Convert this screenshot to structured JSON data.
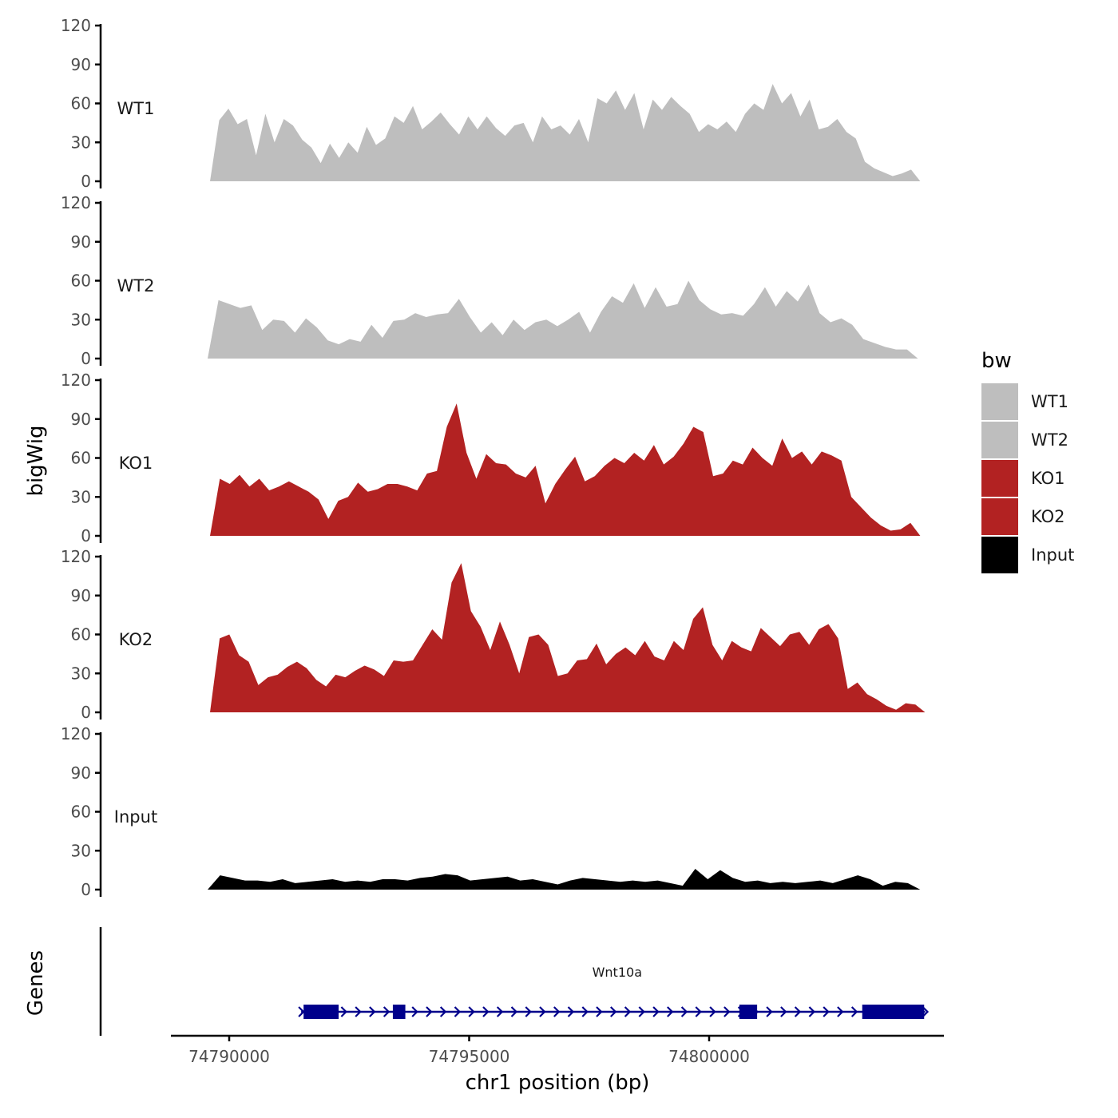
{
  "chart_data": {
    "type": "area",
    "y_axis_title": "bigWig",
    "x_axis_title": "chr1 position (bp)",
    "genes_axis_title": "Genes",
    "y_ticks": [
      "0",
      "30",
      "60",
      "90",
      "120"
    ],
    "ylim": [
      0,
      120
    ],
    "xlim": [
      74788800,
      74804700
    ],
    "x_ticks": [
      {
        "value": 74790000,
        "label": "74790000"
      },
      {
        "value": 74795000,
        "label": "74795000"
      },
      {
        "value": 74800000,
        "label": "74800000"
      }
    ],
    "legend": {
      "title": "bw",
      "entries": [
        {
          "label": "WT1",
          "color": "#bebebe"
        },
        {
          "label": "WT2",
          "color": "#bebebe"
        },
        {
          "label": "KO1",
          "color": "#b22222"
        },
        {
          "label": "KO2",
          "color": "#b22222"
        },
        {
          "label": "Input",
          "color": "#000000"
        }
      ]
    },
    "series": [
      {
        "name": "WT1",
        "color": "#bebebe",
        "x_start": 74789600,
        "x_end": 74804400,
        "values": [
          0,
          47,
          56,
          44,
          48,
          20,
          52,
          30,
          48,
          43,
          32,
          26,
          14,
          29,
          18,
          30,
          22,
          42,
          28,
          33,
          50,
          45,
          58,
          40,
          46,
          53,
          44,
          36,
          50,
          40,
          50,
          41,
          35,
          43,
          45,
          30,
          50,
          40,
          43,
          36,
          48,
          30,
          64,
          60,
          70,
          55,
          68,
          40,
          63,
          55,
          65,
          58,
          52,
          38,
          44,
          40,
          46,
          38,
          52,
          60,
          55,
          75,
          60,
          68,
          50,
          63,
          40,
          42,
          48,
          38,
          33,
          15,
          10,
          7,
          4,
          6,
          9,
          0
        ]
      },
      {
        "name": "WT2",
        "color": "#bebebe",
        "x_start": 74789550,
        "x_end": 74804350,
        "values": [
          0,
          45,
          42,
          39,
          41,
          22,
          30,
          29,
          20,
          31,
          24,
          14,
          11,
          15,
          13,
          26,
          16,
          29,
          30,
          35,
          32,
          34,
          35,
          46,
          32,
          20,
          28,
          18,
          30,
          22,
          28,
          30,
          25,
          30,
          36,
          20,
          36,
          48,
          43,
          58,
          39,
          55,
          40,
          42,
          60,
          45,
          38,
          34,
          35,
          33,
          42,
          55,
          40,
          52,
          44,
          57,
          35,
          28,
          31,
          26,
          15,
          12,
          9,
          7,
          7,
          0
        ]
      },
      {
        "name": "KO1",
        "color": "#b22222",
        "x_start": 74789600,
        "x_end": 74804400,
        "values": [
          0,
          44,
          40,
          47,
          38,
          44,
          35,
          38,
          42,
          38,
          34,
          28,
          13,
          27,
          30,
          41,
          34,
          36,
          40,
          40,
          38,
          35,
          48,
          50,
          84,
          102,
          64,
          44,
          63,
          56,
          55,
          48,
          45,
          54,
          25,
          40,
          51,
          61,
          42,
          46,
          54,
          60,
          56,
          64,
          58,
          70,
          55,
          61,
          71,
          84,
          80,
          46,
          48,
          58,
          55,
          68,
          60,
          54,
          75,
          60,
          65,
          55,
          65,
          62,
          58,
          30,
          22,
          14,
          8,
          4,
          5,
          10,
          0
        ]
      },
      {
        "name": "KO2",
        "color": "#b22222",
        "x_start": 74789600,
        "x_end": 74804500,
        "values": [
          0,
          57,
          60,
          44,
          39,
          21,
          27,
          29,
          35,
          39,
          34,
          25,
          20,
          29,
          27,
          32,
          36,
          33,
          28,
          40,
          39,
          40,
          52,
          64,
          56,
          100,
          115,
          78,
          66,
          48,
          70,
          52,
          30,
          58,
          60,
          52,
          28,
          30,
          40,
          41,
          53,
          37,
          45,
          50,
          44,
          55,
          43,
          40,
          55,
          48,
          72,
          81,
          52,
          40,
          55,
          50,
          47,
          65,
          58,
          51,
          60,
          62,
          52,
          64,
          68,
          57,
          18,
          23,
          14,
          10,
          5,
          2,
          7,
          6,
          0
        ]
      },
      {
        "name": "Input",
        "color": "#000000",
        "x_start": 74789550,
        "x_end": 74804400,
        "values": [
          0,
          11,
          9,
          7,
          7,
          6,
          8,
          5,
          6,
          7,
          8,
          6,
          7,
          6,
          8,
          8,
          7,
          9,
          10,
          12,
          11,
          7,
          8,
          9,
          10,
          7,
          8,
          6,
          4,
          7,
          9,
          8,
          7,
          6,
          7,
          6,
          7,
          5,
          3,
          16,
          8,
          15,
          9,
          6,
          7,
          5,
          6,
          5,
          6,
          7,
          5,
          8,
          11,
          8,
          3,
          6,
          5,
          0
        ]
      }
    ],
    "gene": {
      "name": "Wnt10a",
      "start": 74791500,
      "end": 74804500,
      "strand": "+",
      "exons": [
        [
          74791550,
          74792280
        ],
        [
          74793410,
          74793670
        ],
        [
          74800630,
          74801000
        ],
        [
          74803190,
          74804480
        ]
      ]
    }
  }
}
